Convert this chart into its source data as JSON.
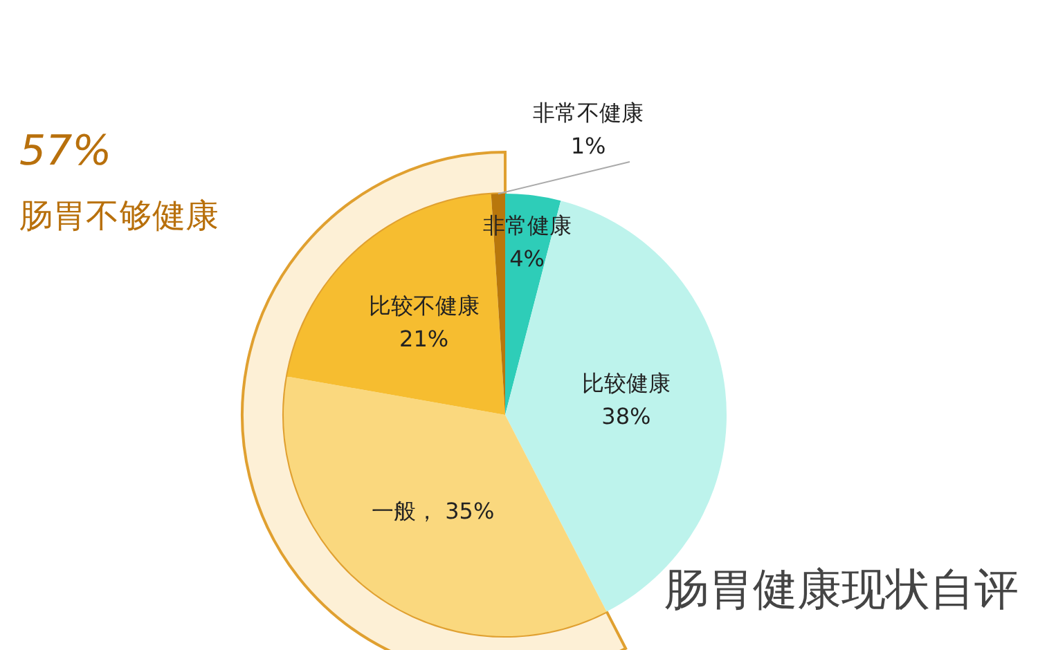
{
  "chart_data": {
    "type": "pie",
    "title": "肠胃健康现状自评",
    "categories": [
      "非常健康",
      "比较健康",
      "一般",
      "比较不健康",
      "非常不健康"
    ],
    "values": [
      4,
      38,
      35,
      21,
      1
    ],
    "colors": [
      "#2ecdb8",
      "#bdf3ec",
      "#fad87e",
      "#f6bd30",
      "#b8770c"
    ],
    "value_labels": [
      "4%",
      "38%",
      "35%",
      "21%",
      "1%"
    ],
    "annotations": [
      "57%",
      "肠胃不够健康"
    ],
    "legend": false
  }
}
